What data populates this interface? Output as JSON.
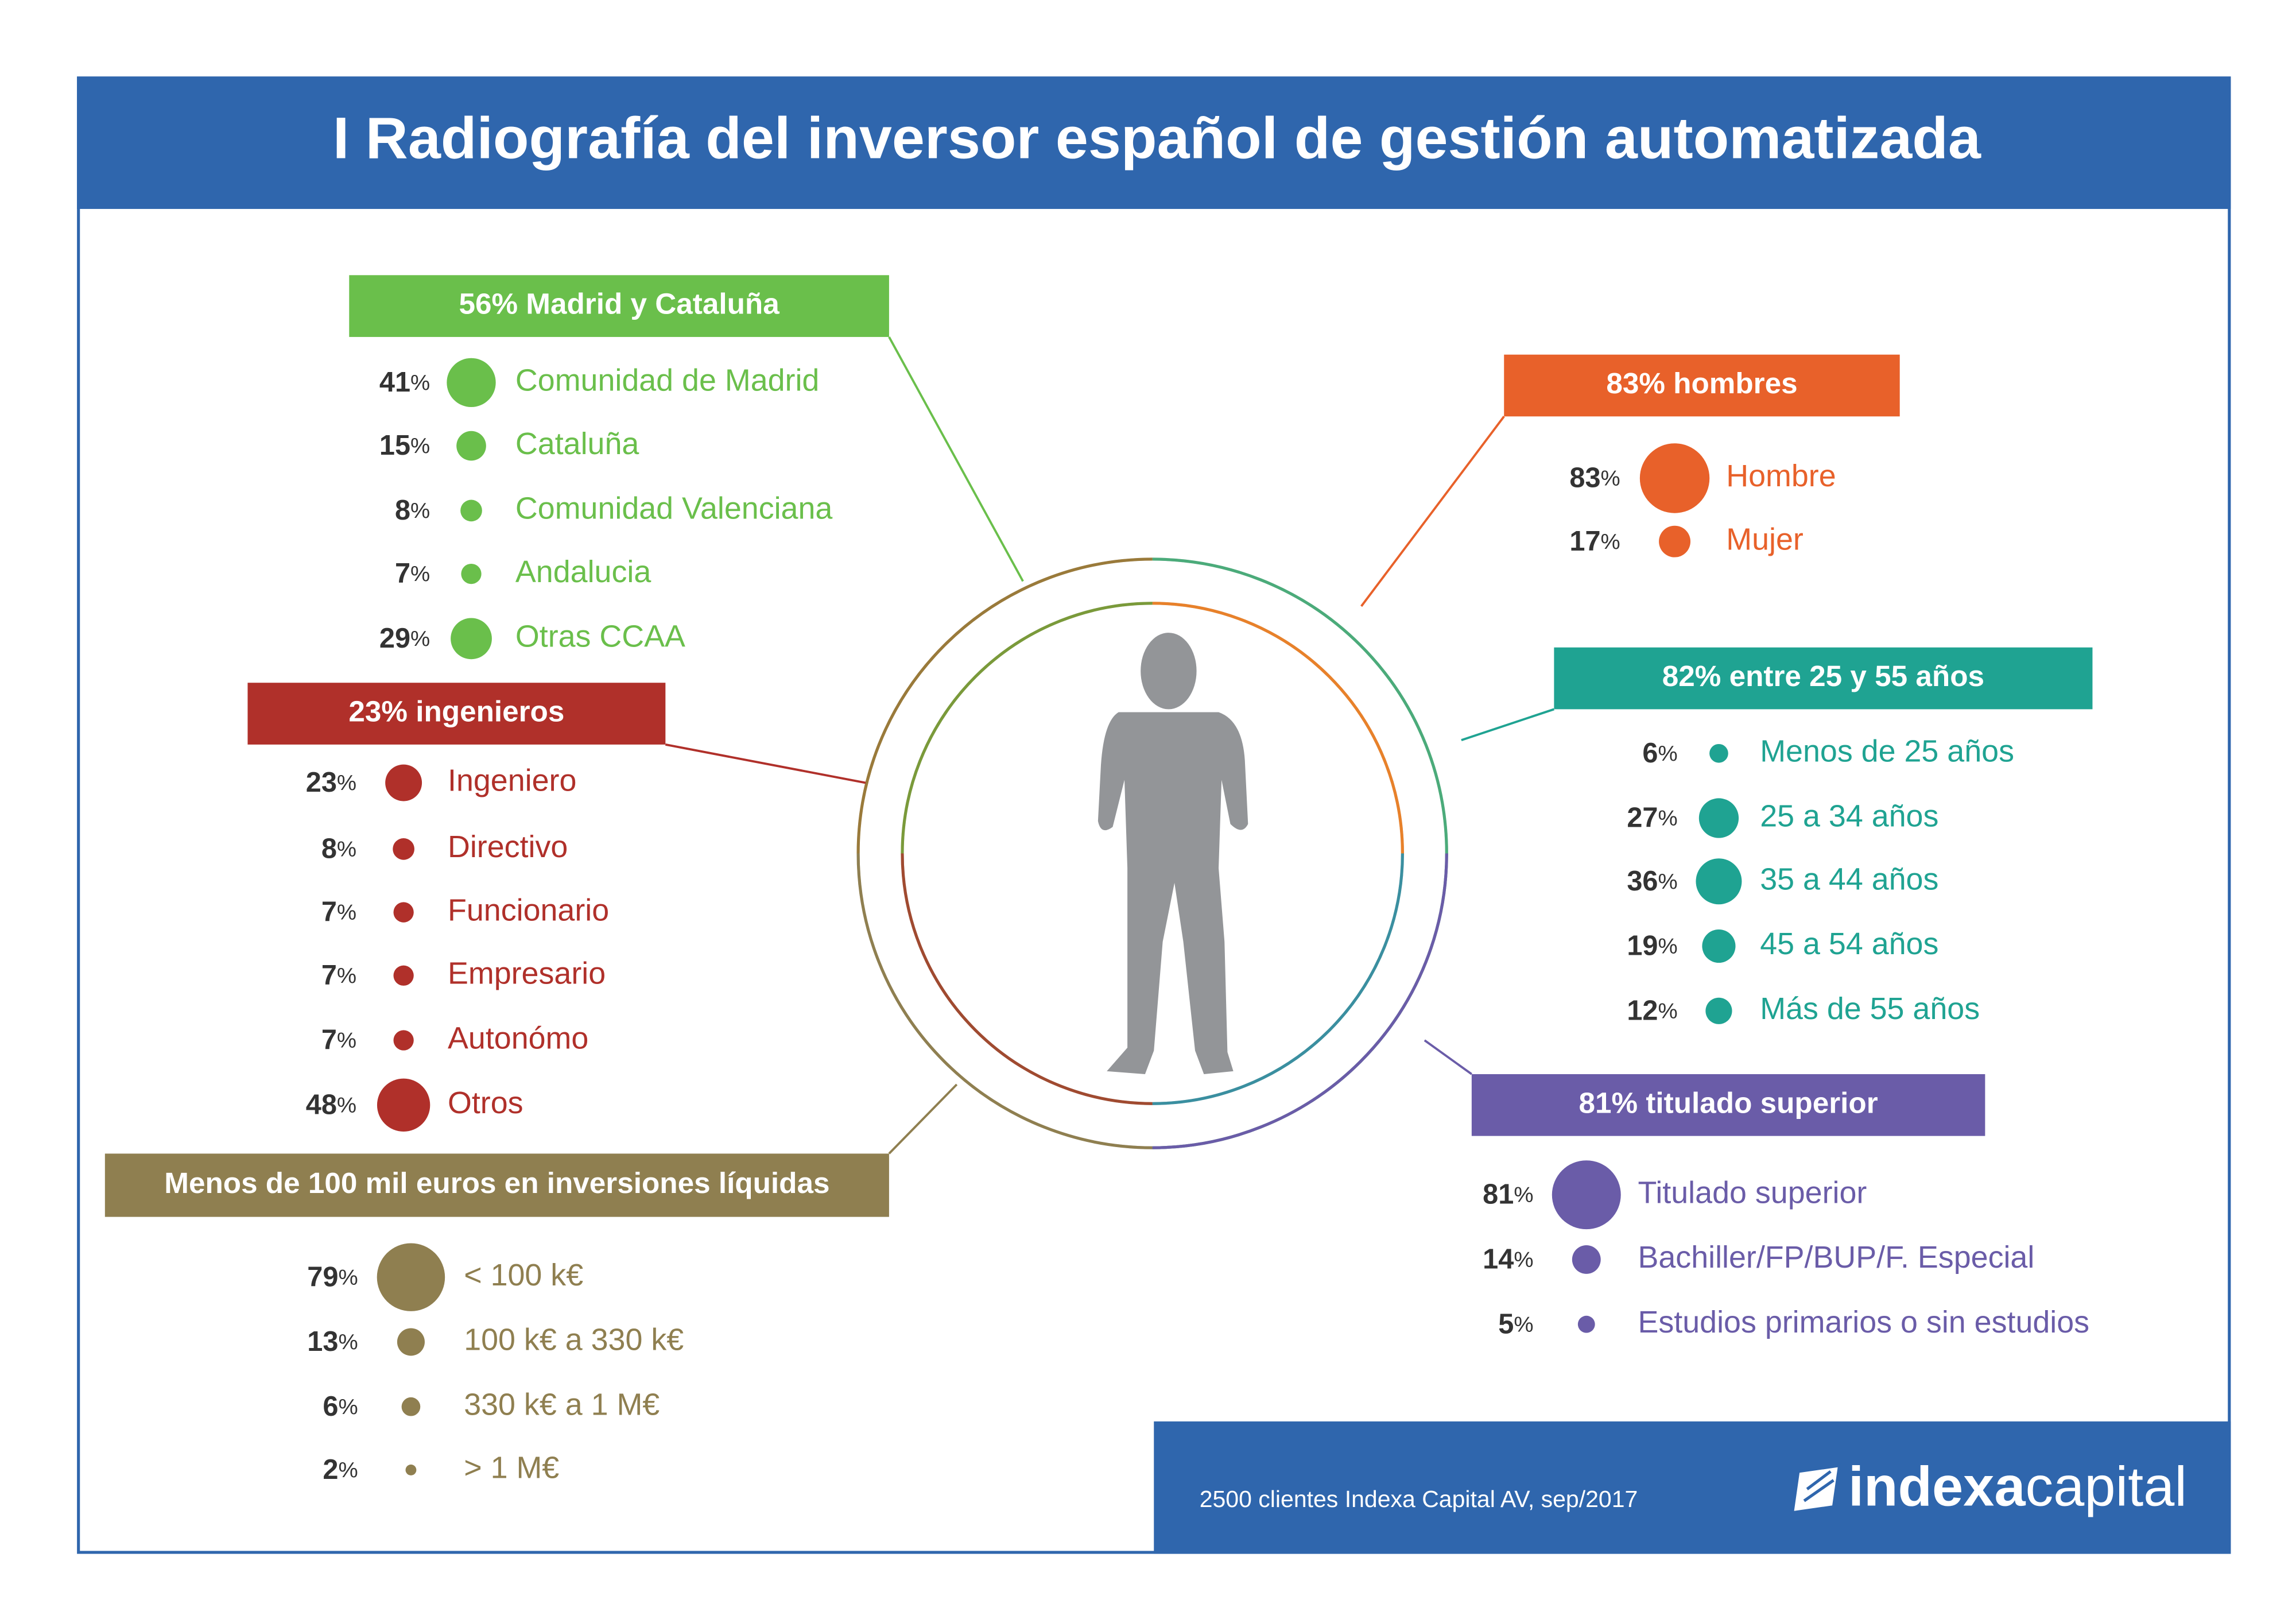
{
  "title": "I Radiografía del inversor español de gestión automatizada",
  "unit": "%",
  "sections": [
    {
      "header": "56% Madrid y Cataluña",
      "color": "#6abf4b",
      "items": [
        {
          "value": 41,
          "label": "Comunidad de Madrid"
        },
        {
          "value": 15,
          "label": "Cataluña"
        },
        {
          "value": 8,
          "label": "Comunidad Valenciana"
        },
        {
          "value": 7,
          "label": "Andalucia"
        },
        {
          "value": 29,
          "label": "Otras CCAA"
        }
      ]
    },
    {
      "header": "23% ingenieros",
      "color": "#b0302a",
      "items": [
        {
          "value": 23,
          "label": "Ingeniero"
        },
        {
          "value": 8,
          "label": "Directivo"
        },
        {
          "value": 7,
          "label": "Funcionario"
        },
        {
          "value": 7,
          "label": "Empresario"
        },
        {
          "value": 7,
          "label": "Autonómo"
        },
        {
          "value": 48,
          "label": "Otros"
        }
      ]
    },
    {
      "header": "Menos de 100 mil euros en inversiones líquidas",
      "color": "#8f7f50",
      "items": [
        {
          "value": 79,
          "label": "< 100 k€"
        },
        {
          "value": 13,
          "label": "100 k€ a 330 k€"
        },
        {
          "value": 6,
          "label": "330 k€ a 1 M€"
        },
        {
          "value": 2,
          "label": "> 1 M€"
        }
      ]
    },
    {
      "header": "83% hombres",
      "color": "#e8612a",
      "items": [
        {
          "value": 83,
          "label": "Hombre"
        },
        {
          "value": 17,
          "label": "Mujer"
        }
      ]
    },
    {
      "header": "82% entre 25 y 55 años",
      "color": "#1fa392",
      "items": [
        {
          "value": 6,
          "label": "Menos de 25 años"
        },
        {
          "value": 27,
          "label": "25 a 34 años"
        },
        {
          "value": 36,
          "label": "35 a 44 años"
        },
        {
          "value": 19,
          "label": "45 a 54 años"
        },
        {
          "value": 12,
          "label": "Más de 55 años"
        }
      ]
    },
    {
      "header": "81% titulado superior",
      "color": "#6a5ca8",
      "items": [
        {
          "value": 81,
          "label": "Titulado superior"
        },
        {
          "value": 14,
          "label": "Bachiller/FP/BUP/F. Especial"
        },
        {
          "value": 5,
          "label": "Estudios primarios o sin estudios"
        }
      ]
    }
  ],
  "footer": {
    "source": "2500 clientes Indexa Capital AV, sep/2017",
    "logo_bold": "indexa",
    "logo_light": "capital"
  }
}
